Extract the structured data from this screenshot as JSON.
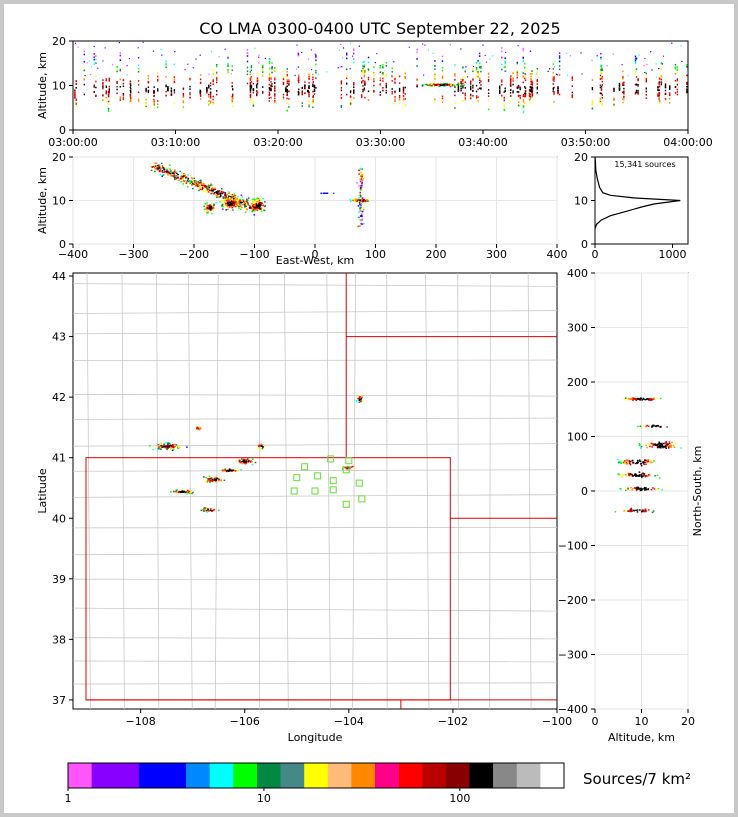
{
  "chart_data": [
    {
      "type": "scatter",
      "name": "time-altitude",
      "title": "CO LMA 0300-0400 UTC September 22, 2025",
      "xlabel": "",
      "ylabel": "Altitude, km",
      "xticks": [
        "03:00:00",
        "03:10:00",
        "03:20:00",
        "03:30:00",
        "03:40:00",
        "03:50:00",
        "04:00:00"
      ],
      "xlim_minutes": [
        0,
        60
      ],
      "ylim": [
        0,
        20
      ],
      "yticks": [
        0,
        10,
        20
      ]
    },
    {
      "type": "scatter",
      "name": "east-west-altitude",
      "xlabel": "East-West, km",
      "ylabel": "Altitude, km",
      "xlim": [
        -400,
        400
      ],
      "xticks": [
        -400,
        -300,
        -200,
        -100,
        0,
        100,
        200,
        300,
        400
      ],
      "ylim": [
        0,
        20
      ],
      "yticks": [
        0,
        10,
        20
      ]
    },
    {
      "type": "line",
      "name": "altitude-histogram",
      "annotation": "15,341 sources",
      "xlim": [
        0,
        1200
      ],
      "xticks": [
        0,
        1000
      ],
      "ylim": [
        0,
        20
      ],
      "yticks": [
        0,
        10,
        20
      ],
      "profile": [
        [
          0,
          3.5
        ],
        [
          20,
          4.5
        ],
        [
          80,
          5.5
        ],
        [
          200,
          6.5
        ],
        [
          400,
          7.5
        ],
        [
          600,
          8.5
        ],
        [
          760,
          9.2
        ],
        [
          1100,
          10.0
        ],
        [
          500,
          10.6
        ],
        [
          200,
          11.2
        ],
        [
          100,
          11.8
        ],
        [
          60,
          13
        ],
        [
          30,
          15
        ],
        [
          10,
          17
        ],
        [
          5,
          19
        ],
        [
          0,
          20
        ]
      ]
    },
    {
      "type": "scatter",
      "name": "plan-view",
      "xlabel": "Longitude",
      "ylabel": "Latitude",
      "xlim": [
        -109.3,
        -100.0
      ],
      "xticks": [
        -108,
        -106,
        -104,
        -102,
        -100
      ],
      "ylim": [
        36.85,
        44.05
      ],
      "yticks": [
        37,
        38,
        39,
        40,
        41,
        42,
        43,
        44
      ],
      "stations_count": 13
    },
    {
      "type": "scatter",
      "name": "altitude-north-south",
      "xlabel": "Altitude, km",
      "ylabel": "North-South, km",
      "xlim": [
        0,
        20
      ],
      "xticks": [
        0,
        10,
        20
      ],
      "ylim": [
        -400,
        400
      ],
      "yticks": [
        -400,
        -300,
        -200,
        -100,
        0,
        100,
        200,
        300,
        400
      ]
    }
  ],
  "colorbar": {
    "label": "Sources/7 km²",
    "ticks": [
      "1",
      "10",
      "100"
    ],
    "colors": [
      "#ff55ff",
      "#8800ff",
      "#8800ff",
      "#0000ff",
      "#0000ff",
      "#0088ff",
      "#00ffff",
      "#00ff00",
      "#008844",
      "#448888",
      "#ffff00",
      "#ffbb77",
      "#ff8800",
      "#ff0088",
      "#ff0000",
      "#bb0000",
      "#880000",
      "#000000",
      "#888888",
      "#bbbbbb",
      "#ffffff"
    ]
  }
}
